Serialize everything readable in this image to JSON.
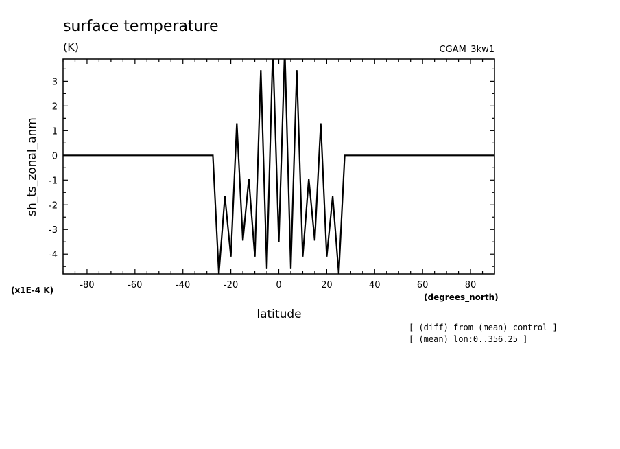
{
  "chart_data": {
    "type": "line",
    "title": "surface temperature",
    "units": "(K)",
    "run_label": "CGAM_3kw1",
    "ylabel": "sh_ts_zonal_anm",
    "xlabel": "latitude",
    "x_units": "(degrees_north)",
    "y_scale_label": "(x1E-4 K)",
    "notes": [
      "[ (diff) from (mean) control ]",
      "[ (mean) lon:0..356.25 ]"
    ],
    "xlim": [
      -90,
      90
    ],
    "ylim": [
      -4.8,
      3.9
    ],
    "x_ticks": [
      -80,
      -60,
      -40,
      -20,
      0,
      20,
      40,
      60,
      80
    ],
    "y_ticks": [
      -4,
      -3,
      -2,
      -1,
      0,
      1,
      2,
      3
    ],
    "x_tick_labels": [
      "-80",
      "-60",
      "-40",
      "-20",
      "0",
      "20",
      "40",
      "60",
      "80"
    ],
    "y_tick_labels": [
      "-4",
      "-3",
      "-2",
      "-1",
      "0",
      "1",
      "2",
      "3"
    ],
    "line_color": "#000000",
    "series": [
      {
        "x": [
          -90,
          -27.5,
          -25,
          -22.5,
          -20,
          -17.5,
          -15,
          -12.5,
          -10,
          -7.5,
          -5,
          -2.5,
          0,
          2.5,
          5,
          7.5,
          10,
          12.5,
          15,
          17.5,
          20,
          22.5,
          25,
          27.5,
          90
        ],
        "y": [
          0,
          0,
          -4.8,
          -1.65,
          -4.1,
          1.3,
          -3.45,
          -0.95,
          -4.1,
          3.45,
          -4.6,
          4.3,
          -3.5,
          4.3,
          -4.6,
          3.45,
          -4.1,
          -0.95,
          -3.45,
          1.3,
          -4.1,
          -1.65,
          -4.8,
          0,
          0
        ]
      }
    ]
  }
}
